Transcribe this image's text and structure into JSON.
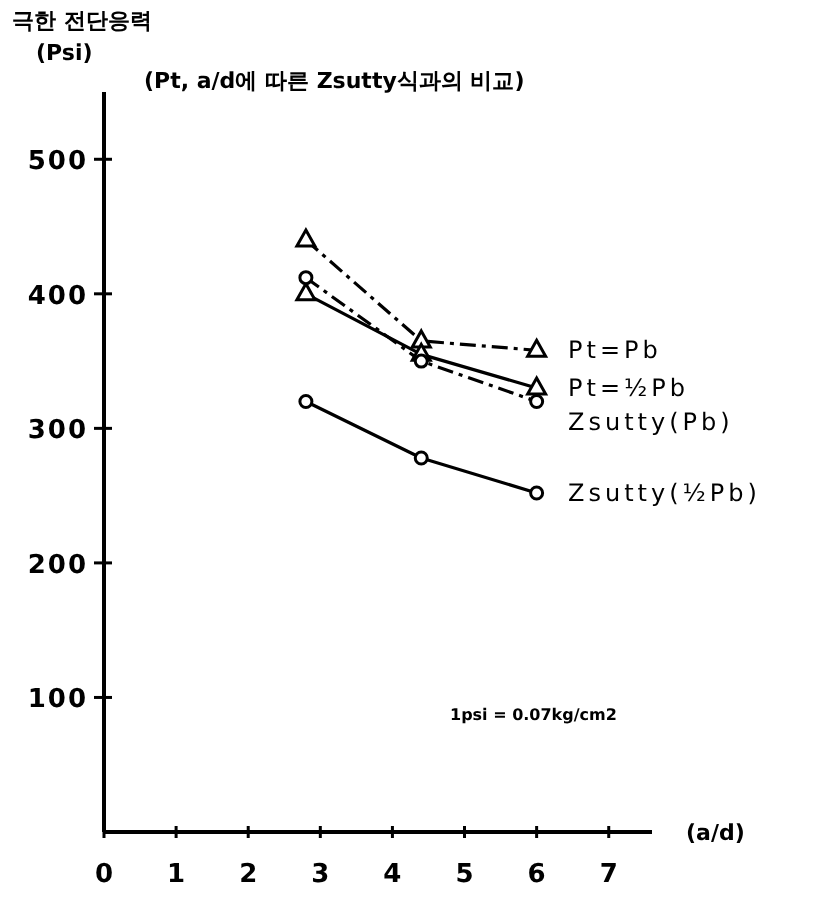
{
  "chart_data": {
    "type": "line",
    "title": "(Pt, a/d에 따른 Zsutty식과의 비교)",
    "ylabel": "극한 전단응력\n(Psi)",
    "xlabel": "(a/d)",
    "annotations": [
      "1psi = 0.07kg/cm2"
    ],
    "xlim": [
      0,
      7.6
    ],
    "xticks": [
      0,
      1,
      2,
      3,
      4,
      5,
      6,
      7
    ],
    "ylim": [
      0,
      550
    ],
    "yticks": [
      100,
      200,
      300,
      400,
      500
    ],
    "grid": false,
    "x": [
      2.8,
      4.4,
      6
    ],
    "series": [
      {
        "name": "Pt=Pb",
        "color": "#000000",
        "values": [
          440,
          365,
          358
        ],
        "marker": "triangle",
        "line_style": "dashed"
      },
      {
        "name": "Pt=½Pb",
        "color": "#000000",
        "values": [
          400,
          355,
          330
        ],
        "marker": "triangle",
        "line_style": "solid"
      },
      {
        "name": "Zsutty(Pb)",
        "color": "#000000",
        "values": [
          412,
          350,
          320
        ],
        "marker": "circle",
        "line_style": "dashed"
      },
      {
        "name": "Zsutty(½Pb)",
        "color": "#000000",
        "values": [
          320,
          278,
          252
        ],
        "marker": "circle",
        "line_style": "solid"
      }
    ]
  }
}
